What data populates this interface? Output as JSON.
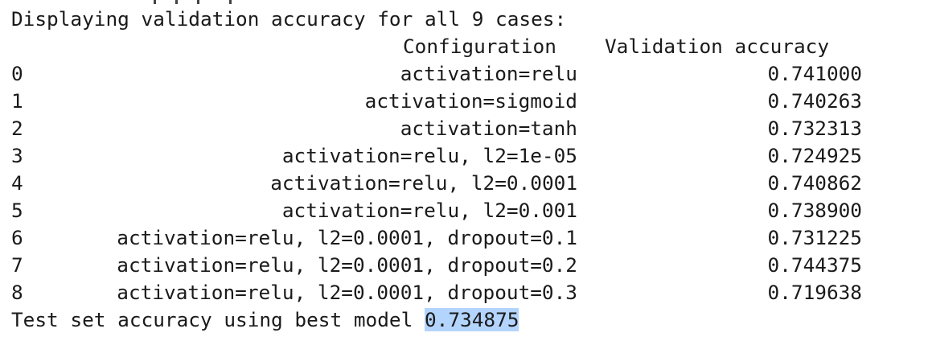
{
  "output": {
    "intro": "Displaying validation accuracy for all 9 cases:",
    "columns": {
      "configuration": "Configuration",
      "validation_accuracy": "Validation accuracy"
    },
    "rows": [
      {
        "index": "0",
        "configuration": "activation=relu",
        "accuracy": "0.741000"
      },
      {
        "index": "1",
        "configuration": "activation=sigmoid",
        "accuracy": "0.740263"
      },
      {
        "index": "2",
        "configuration": "activation=tanh",
        "accuracy": "0.732313"
      },
      {
        "index": "3",
        "configuration": "activation=relu, l2=1e-05",
        "accuracy": "0.724925"
      },
      {
        "index": "4",
        "configuration": "activation=relu, l2=0.0001",
        "accuracy": "0.740862"
      },
      {
        "index": "5",
        "configuration": "activation=relu, l2=0.001",
        "accuracy": "0.738900"
      },
      {
        "index": "6",
        "configuration": "activation=relu, l2=0.0001, dropout=0.1",
        "accuracy": "0.731225"
      },
      {
        "index": "7",
        "configuration": "activation=relu, l2=0.0001, dropout=0.2",
        "accuracy": "0.744375"
      },
      {
        "index": "8",
        "configuration": "activation=relu, l2=0.0001, dropout=0.3",
        "accuracy": "0.719638"
      }
    ],
    "test_label": "Test set accuracy using best model ",
    "test_value": "0.734875",
    "colors": {
      "text": "#1a1a1a",
      "selection_highlight": "#b3d4fc"
    }
  }
}
